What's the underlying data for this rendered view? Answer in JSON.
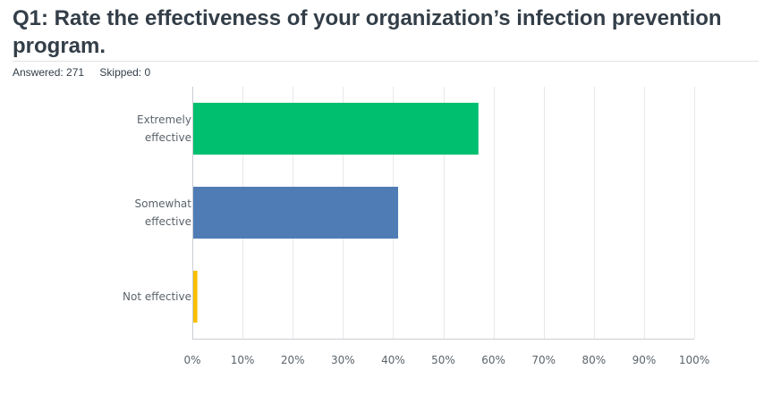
{
  "question": {
    "title": "Q1: Rate the effectiveness of your organization’s infection prevention program.",
    "answered_label": "Answered:",
    "answered": "271",
    "skipped_label": "Skipped:",
    "skipped": "0"
  },
  "colors": {
    "title": "#333e48",
    "grid": "#e6e8ea",
    "axis": "#c9cdd1",
    "tick_text": "#5b636b"
  },
  "chart_data": {
    "type": "bar",
    "orientation": "horizontal",
    "categories": [
      [
        "Extremely",
        "effective"
      ],
      [
        "Somewhat",
        "effective"
      ],
      [
        "Not effective"
      ]
    ],
    "values": [
      57,
      41,
      1
    ],
    "colors": [
      "#00bf6f",
      "#507cb6",
      "#f9be00"
    ],
    "xlim": [
      0,
      100
    ],
    "xticks": [
      0,
      10,
      20,
      30,
      40,
      50,
      60,
      70,
      80,
      90,
      100
    ],
    "xtick_labels": [
      "0%",
      "10%",
      "20%",
      "30%",
      "40%",
      "50%",
      "60%",
      "70%",
      "80%",
      "90%",
      "100%"
    ],
    "grid": true
  }
}
